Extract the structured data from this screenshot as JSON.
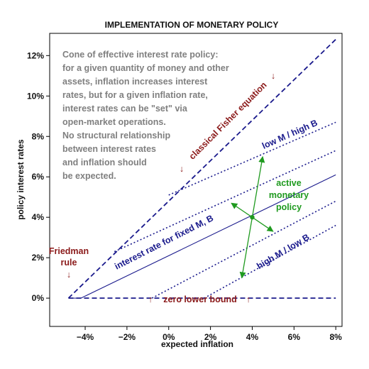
{
  "chart_data": {
    "type": "line",
    "title": "IMPLEMENTATION OF MONETARY POLICY",
    "xlabel": "expected inflation",
    "ylabel": "policy interest rates",
    "xlim": [
      -5.7,
      8.3
    ],
    "ylim": [
      -1.4,
      13.1
    ],
    "x_ticks": [
      -4,
      -2,
      0,
      2,
      4,
      6,
      8
    ],
    "x_tick_labels": [
      "−4%",
      "−2%",
      "0%",
      "2%",
      "4%",
      "6%",
      "8%"
    ],
    "y_ticks": [
      0,
      2,
      4,
      6,
      8,
      10,
      12
    ],
    "y_tick_labels": [
      "0%",
      "2%",
      "4%",
      "6%",
      "8%",
      "10%",
      "12%"
    ],
    "grid": false,
    "series": [
      {
        "name": "classical Fisher equation",
        "style": "dashed",
        "x": [
          -4.8,
          8
        ],
        "y": [
          0,
          12.8
        ]
      },
      {
        "name": "zero lower bound",
        "style": "dashed",
        "x": [
          -4.8,
          8
        ],
        "y": [
          0,
          0
        ]
      },
      {
        "name": "interest rate for fixed M, B",
        "style": "solid",
        "x": [
          -4.8,
          -4.2,
          8
        ],
        "y": [
          0,
          0,
          6.1
        ]
      },
      {
        "name": "low M / high B",
        "style": "dotted",
        "x": [
          0,
          8
        ],
        "y": [
          5.1,
          8.7
        ]
      },
      {
        "style": "dotted",
        "x": [
          -2.6,
          8
        ],
        "y": [
          2.3,
          7.3
        ]
      },
      {
        "style": "dotted",
        "x": [
          -0.8,
          8
        ],
        "y": [
          0,
          4.8
        ]
      },
      {
        "name": "high M / low B",
        "style": "dotted",
        "x": [
          1.7,
          8
        ],
        "y": [
          0,
          3.6
        ]
      }
    ],
    "equilibrium_point": {
      "x": 4,
      "y": 4
    },
    "arrows": [
      {
        "x": [
          3.5,
          4.5
        ],
        "y": [
          1.0,
          7.0
        ]
      },
      {
        "x": [
          3.0,
          5.0
        ],
        "y": [
          4.7,
          3.3
        ]
      }
    ],
    "annotations": {
      "note_lines": [
        "Cone of effective interest rate policy:",
        "for a given quantity of money and other",
        "assets, inflation increases interest",
        "rates, but for a given inflation rate,",
        "interest rates can be \"set\" via",
        "open-market operations.",
        "No structural relationship",
        "between interest rates",
        "and inflation should",
        "be expected."
      ],
      "fisher_label": "classical Fisher equation",
      "fisher_arrow_left": "↓",
      "fisher_arrow_right": "↓",
      "friedman_line1": "Friedman",
      "friedman_line2": "rule",
      "friedman_arrow": "↓",
      "zlb_label": "zero lower bound",
      "zlb_arrow_left": "↑",
      "zlb_arrow_right": "↑",
      "fixed_label": "interest rate for fixed M, B",
      "low_label": "low M / high B",
      "high_label": "high M / low B",
      "active_line1": "active",
      "active_line2": "monetary",
      "active_line3": "policy"
    },
    "colors": {
      "navy": "#1a1a8c",
      "red": "#8b1a1a",
      "green": "#1f9a1f",
      "note": "#7f7f7f"
    }
  }
}
